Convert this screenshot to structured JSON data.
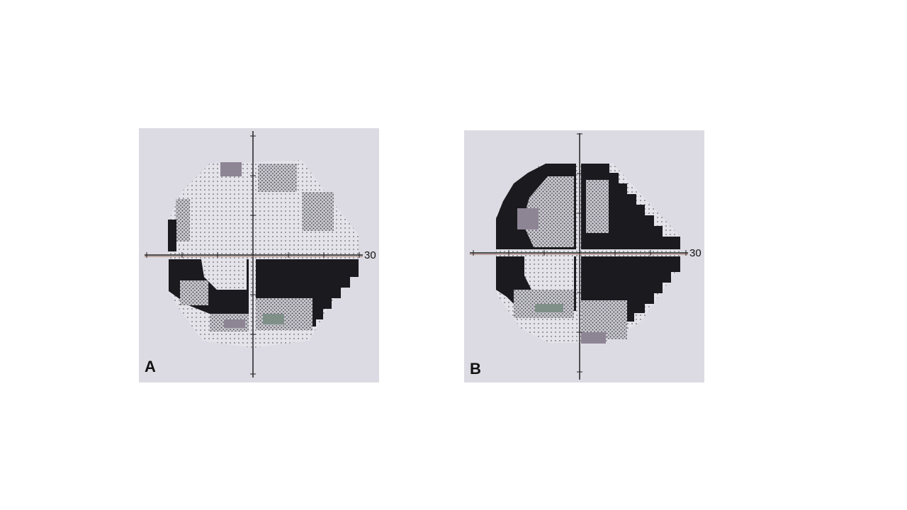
{
  "panels": [
    {
      "label": "A",
      "axis_label": "30"
    },
    {
      "label": "B",
      "axis_label": "30"
    }
  ]
}
